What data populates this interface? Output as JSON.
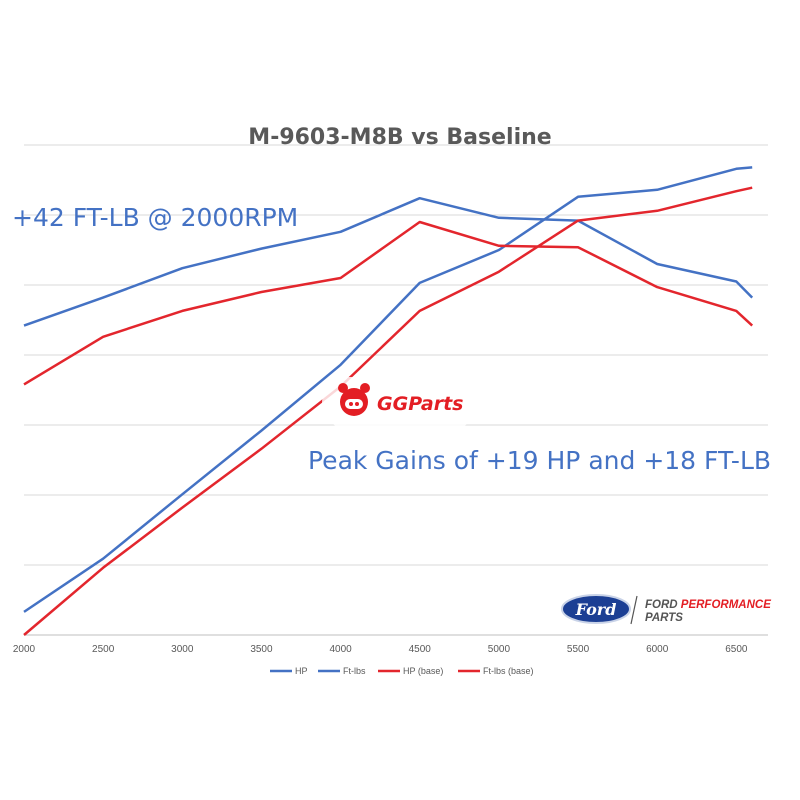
{
  "chart_data": {
    "type": "line",
    "title": "M-9603-M8B vs Baseline",
    "xlabel": "",
    "ylabel": "",
    "x": [
      2000,
      2500,
      3000,
      3500,
      4000,
      4500,
      5000,
      5500,
      6000,
      6500,
      6600
    ],
    "x_ticks": [
      "2000",
      "2500",
      "3000",
      "3500",
      "4000",
      "4500",
      "5000",
      "5500",
      "6000",
      "6500"
    ],
    "xlim": [
      2000,
      6700
    ],
    "ylim": [
      0,
      7
    ],
    "grid": true,
    "legend_position": "bottom",
    "series": [
      {
        "name": "HP",
        "color": "#4472c4",
        "values": [
          0.33,
          1.09,
          2.01,
          2.92,
          3.86,
          5.03,
          5.5,
          6.26,
          6.36,
          6.66,
          6.68
        ]
      },
      {
        "name": "Ft-lbs",
        "color": "#4472c4",
        "values": [
          4.42,
          4.82,
          5.24,
          5.52,
          5.76,
          6.24,
          5.96,
          5.92,
          5.3,
          5.05,
          4.82
        ]
      },
      {
        "name": "HP (base)",
        "color": "#e3262d",
        "values": [
          0.0,
          0.96,
          1.82,
          2.66,
          3.55,
          4.63,
          5.19,
          5.92,
          6.06,
          6.34,
          6.39
        ]
      },
      {
        "name": "Ft-lbs (base)",
        "color": "#e3262d",
        "values": [
          3.58,
          4.26,
          4.63,
          4.9,
          5.1,
          5.9,
          5.56,
          5.54,
          4.97,
          4.63,
          4.42
        ]
      }
    ],
    "annotations": [
      "+42 FT-LB @ 2000RPM",
      "Peak Gains of +19 HP and +18 FT-LB"
    ]
  },
  "watermark": {
    "text": "GGParts",
    "color": "#e31e24"
  },
  "ford_logo": {
    "oval_text": "Ford",
    "line1": "FORD PERFORMANCE",
    "line2": "PARTS",
    "oval_color": "#1c3f94",
    "accent": "#e31e24"
  }
}
